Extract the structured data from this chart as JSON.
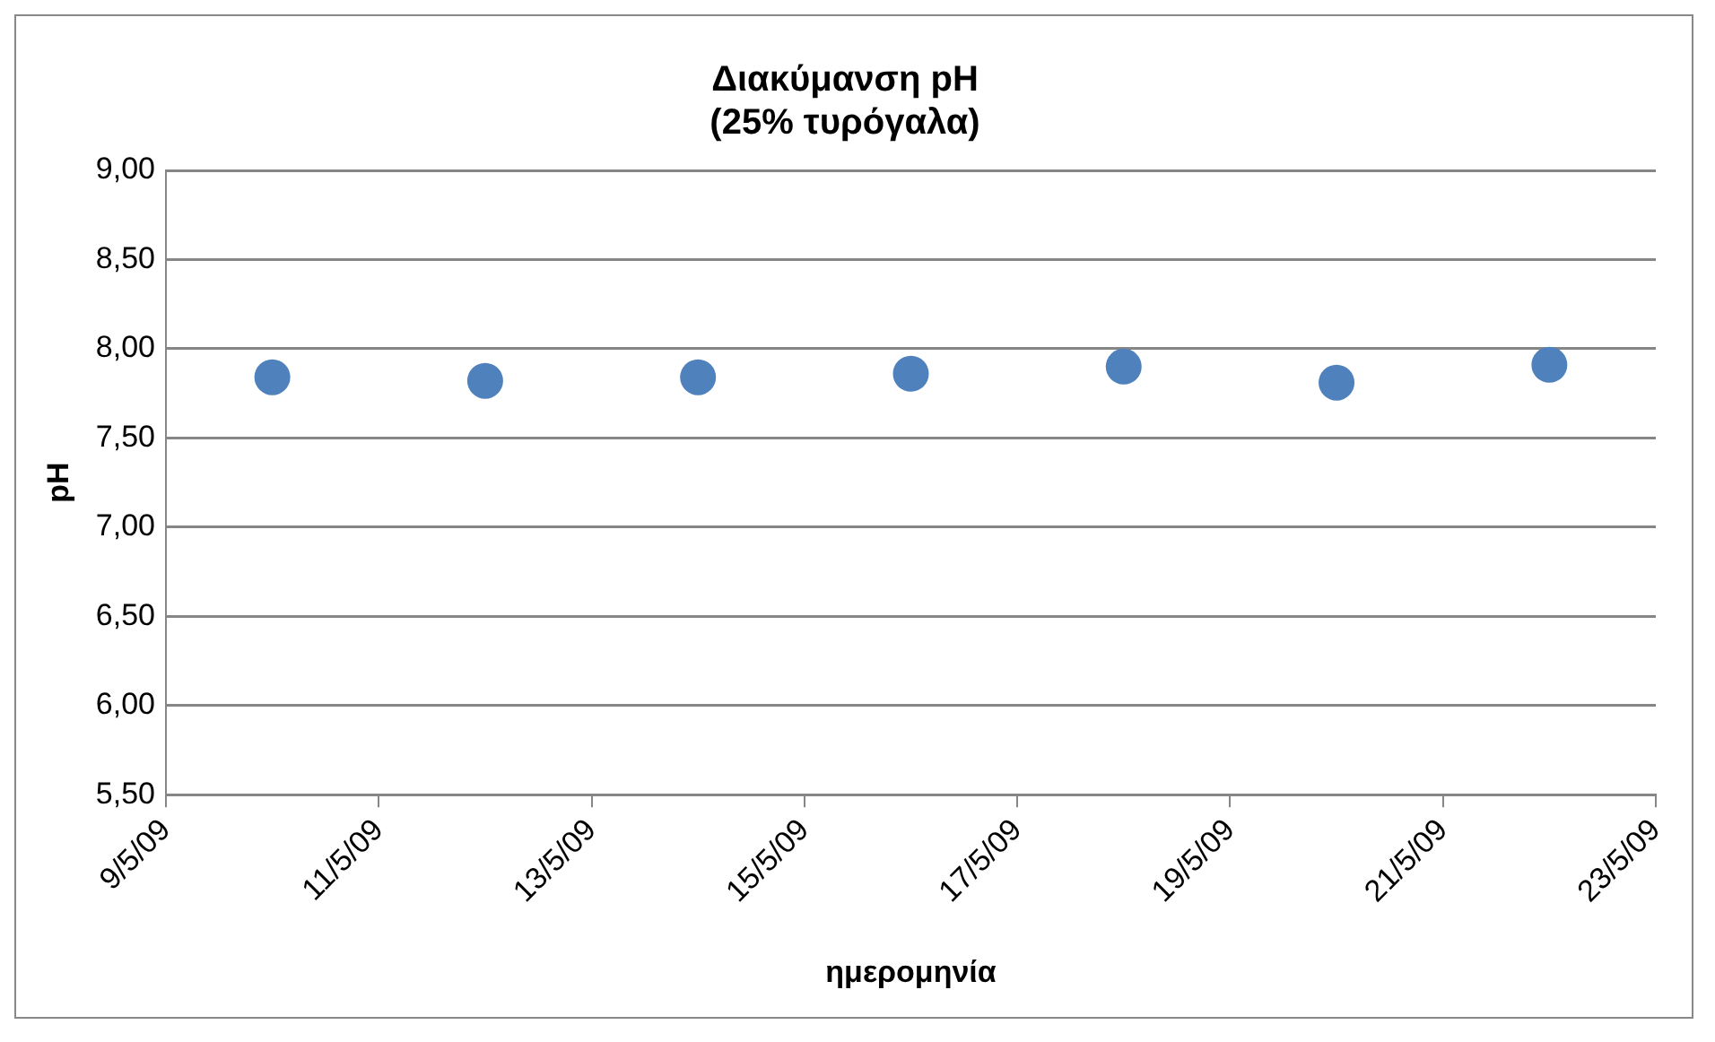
{
  "chart_data": {
    "type": "scatter",
    "title": "Διακύμανση pH\n(25% τυρόγαλα)",
    "xlabel": "ημερομηνία",
    "ylabel": "pH",
    "x": [
      "--05-10",
      "--05-12",
      "--05-14",
      "--05-16",
      "--05-18",
      "--05-20",
      "--05-22"
    ],
    "series": [
      {
        "color": "#4f81bd",
        "values": [
          7.84,
          7.82,
          7.84,
          7.86,
          7.9,
          7.81,
          7.91
        ]
      }
    ],
    "xlim": [
      "--05-09",
      "--05-23"
    ],
    "xticks": [
      {
        "value": "--05-09",
        "label": "9/5/09"
      },
      {
        "value": "--05-11",
        "label": "11/5/09"
      },
      {
        "value": "--05-13",
        "label": "13/5/09"
      },
      {
        "value": "--05-15",
        "label": "15/5/09"
      },
      {
        "value": "--05-17",
        "label": "17/5/09"
      },
      {
        "value": "--05-19",
        "label": "19/5/09"
      },
      {
        "value": "--05-21",
        "label": "21/5/09"
      },
      {
        "value": "--05-23",
        "label": "23/5/09"
      }
    ],
    "ylim": [
      5.5,
      9
    ],
    "yticks": [
      {
        "value": 5.5,
        "label": "5,50"
      },
      {
        "value": 6,
        "label": "6,00"
      },
      {
        "value": 6.5,
        "label": "6,50"
      },
      {
        "value": 7,
        "label": "7,00"
      },
      {
        "value": 7.5,
        "label": "7,50"
      },
      {
        "value": 8,
        "label": "8,00"
      },
      {
        "value": 8.5,
        "label": "8,50"
      },
      {
        "value": 9,
        "label": "9,00"
      }
    ],
    "grid": "y",
    "legend": false,
    "marker": "circle"
  }
}
